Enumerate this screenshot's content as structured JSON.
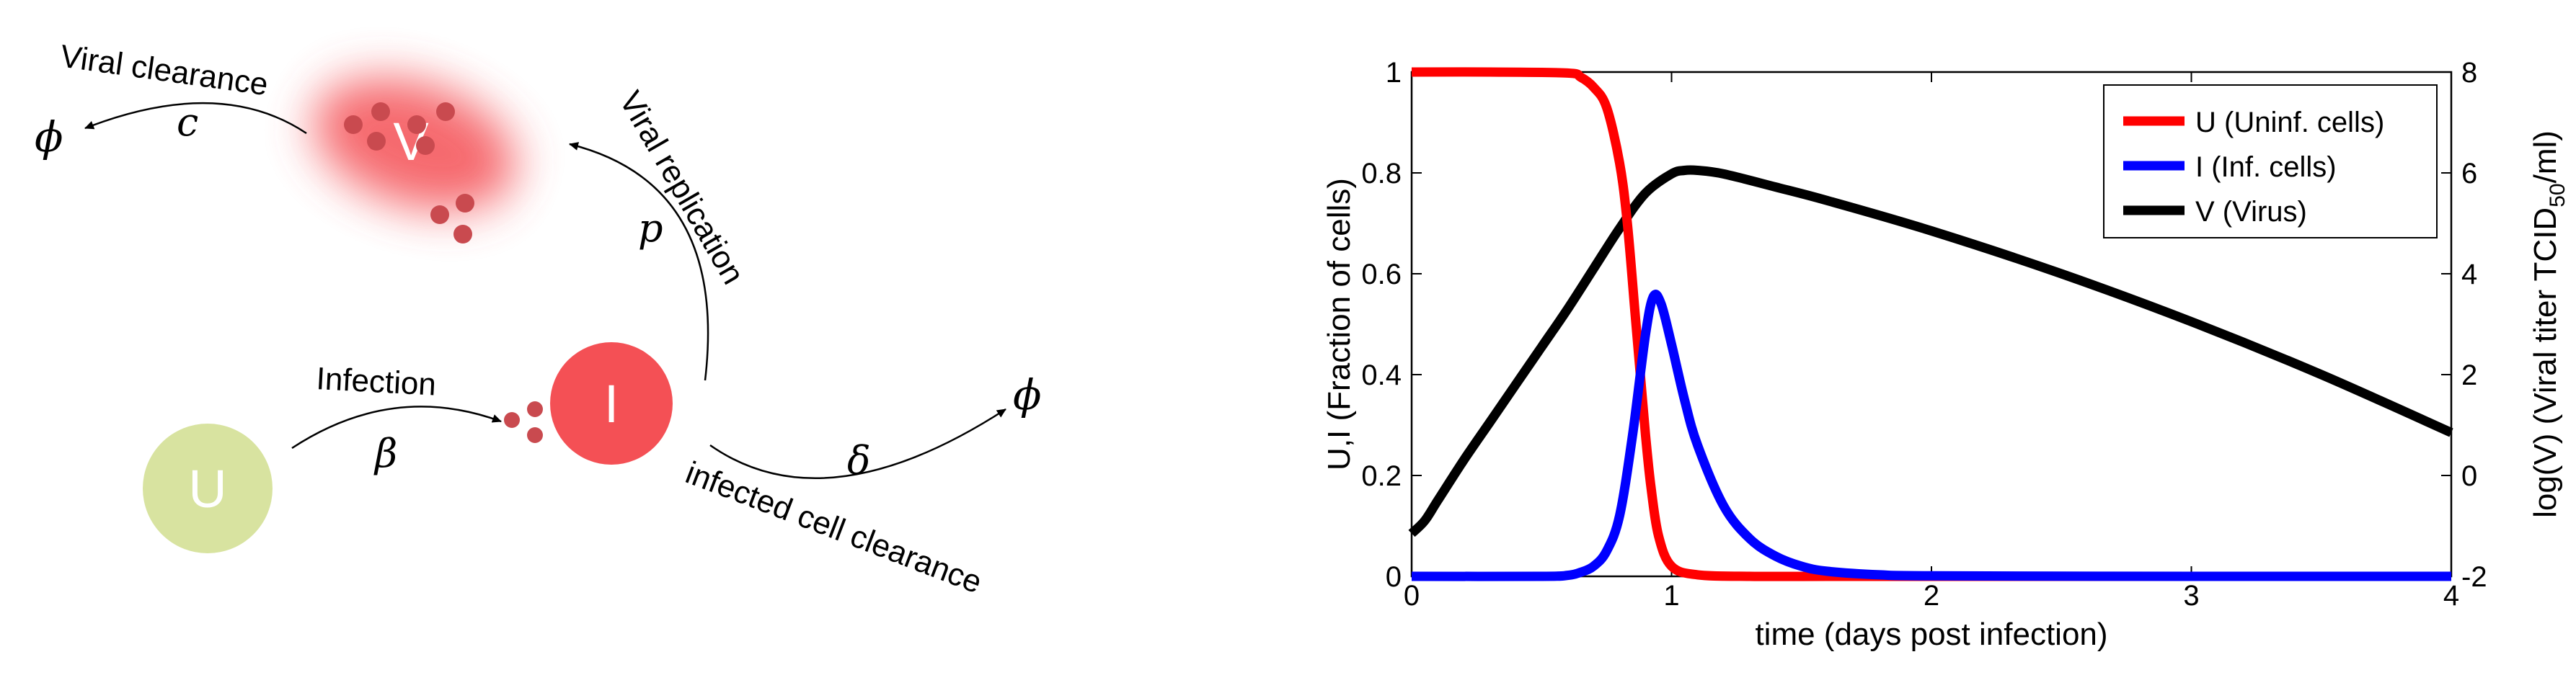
{
  "diagram": {
    "nodes": {
      "U": {
        "label": "U",
        "color": "#d8e3a0"
      },
      "I": {
        "label": "I",
        "color": "#f45055"
      },
      "V": {
        "label": "V",
        "color": "#f45055"
      }
    },
    "labels": {
      "viral_clearance": "Viral clearance",
      "viral_replication": "Viral replication",
      "infection": "Infection",
      "infected_cell_clearance": "infected cell clearance"
    },
    "symbols": {
      "phi": "ϕ",
      "c": "c",
      "p": "p",
      "beta": "β",
      "delta": "δ"
    },
    "particle_color": "#c94a4f"
  },
  "chart_data": {
    "type": "line",
    "xlabel": "time (days post infection)",
    "ylabel": "U,I (Fraction of cells)",
    "y2label": "log(V) (Viral titer TCID50/ml)",
    "y2label_parts": {
      "pre": "log(V) (Viral titer TCID",
      "sub": "50",
      "post": "/ml)"
    },
    "xlim": [
      0,
      4
    ],
    "ylim": [
      0,
      1
    ],
    "y2lim": [
      -2,
      8
    ],
    "xticks": [
      "0",
      "1",
      "2",
      "3",
      "4"
    ],
    "yticks": [
      "0",
      "0.2",
      "0.4",
      "0.6",
      "0.8",
      "1"
    ],
    "y2ticks": [
      "-2",
      "0",
      "2",
      "4",
      "6",
      "8"
    ],
    "grid": false,
    "legend_position": "top-right",
    "series": [
      {
        "name": "U (Uninf. cells)",
        "color": "#ff0000",
        "axis": "left",
        "x": [
          0,
          0.3,
          0.6,
          0.65,
          0.7,
          0.75,
          0.8,
          0.83,
          0.86,
          0.88,
          0.9,
          0.92,
          0.95,
          1.0,
          1.1,
          1.3,
          1.6,
          2,
          3,
          4
        ],
        "y": [
          1,
          1,
          0.998,
          0.99,
          0.97,
          0.93,
          0.82,
          0.7,
          0.52,
          0.4,
          0.28,
          0.18,
          0.08,
          0.02,
          0.003,
          0,
          0,
          0,
          0,
          0
        ]
      },
      {
        "name": "I (Inf. cells)",
        "color": "#0000ff",
        "axis": "left",
        "x": [
          0,
          0.5,
          0.6,
          0.65,
          0.7,
          0.75,
          0.8,
          0.85,
          0.9,
          0.93,
          0.96,
          1.0,
          1.05,
          1.1,
          1.2,
          1.3,
          1.4,
          1.5,
          1.6,
          1.8,
          2,
          3,
          4
        ],
        "y": [
          0,
          0,
          0.002,
          0.008,
          0.02,
          0.05,
          0.12,
          0.28,
          0.48,
          0.555,
          0.54,
          0.46,
          0.35,
          0.26,
          0.14,
          0.075,
          0.04,
          0.02,
          0.01,
          0.003,
          0.001,
          0,
          0
        ]
      },
      {
        "name": "V (Virus)",
        "color": "#000000",
        "axis": "right",
        "x": [
          0,
          0.05,
          0.1,
          0.2,
          0.3,
          0.4,
          0.5,
          0.6,
          0.7,
          0.8,
          0.9,
          1.0,
          1.05,
          1.1,
          1.2,
          1.4,
          1.6,
          2.0,
          2.5,
          3.0,
          3.5,
          4.0
        ],
        "y": [
          -1.15,
          -0.9,
          -0.5,
          0.3,
          1.05,
          1.8,
          2.55,
          3.3,
          4.1,
          4.9,
          5.6,
          5.98,
          6.05,
          6.05,
          5.98,
          5.72,
          5.45,
          4.85,
          4.0,
          3.05,
          2.0,
          0.85
        ]
      }
    ]
  }
}
